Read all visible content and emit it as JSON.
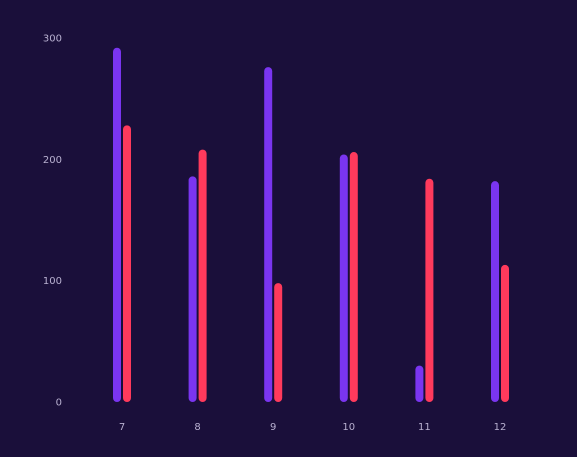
{
  "chart_data": {
    "type": "bar",
    "categories": [
      "7",
      "8",
      "9",
      "10",
      "11",
      "12"
    ],
    "series": [
      {
        "values": [
          292,
          186,
          276,
          204,
          30,
          182
        ]
      },
      {
        "values": [
          228,
          208,
          98,
          206,
          184,
          113
        ]
      }
    ],
    "yticks": [
      0,
      100,
      200,
      300
    ],
    "ylim": [
      0,
      300
    ],
    "grid": false,
    "colors": [
      "#7a35f0",
      "#ff3a5c"
    ]
  }
}
